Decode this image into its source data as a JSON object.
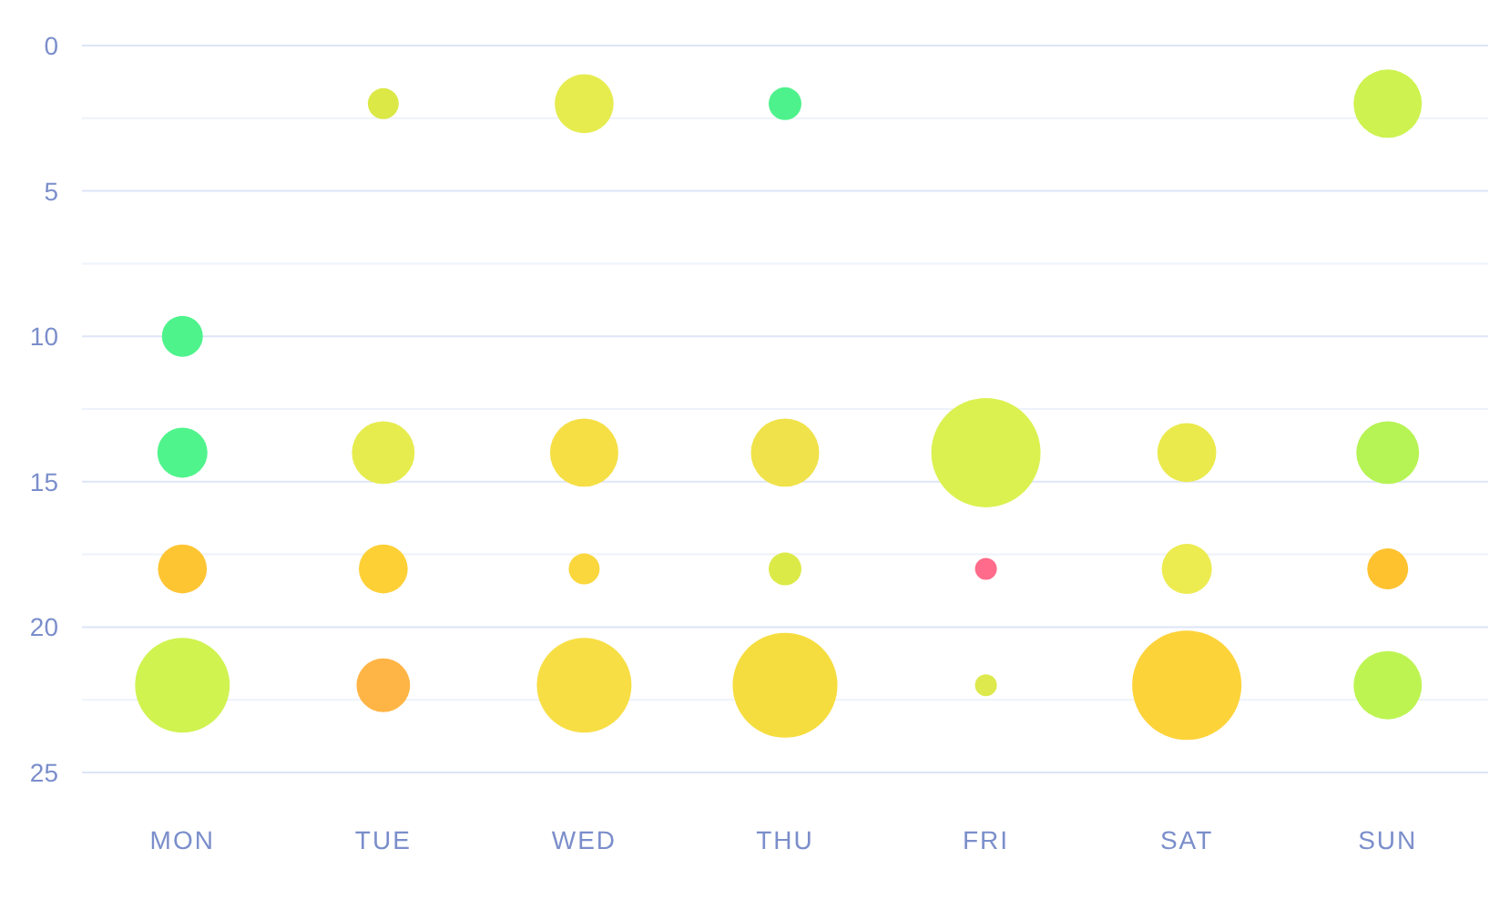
{
  "chart_data": {
    "type": "bubble",
    "categories": [
      "MON",
      "TUE",
      "WED",
      "THU",
      "FRI",
      "SAT",
      "SUN"
    ],
    "series": [
      {
        "values": [
          null,
          2,
          2,
          2,
          null,
          null,
          2
        ],
        "sizes": [
          null,
          0.08,
          0.29,
          0.09,
          null,
          null,
          0.39
        ],
        "colors": [
          null,
          "#dbe845",
          "#e6ec4e",
          "#4ef28c",
          null,
          null,
          "#cef250"
        ]
      },
      {
        "values": [
          10,
          null,
          null,
          null,
          null,
          null,
          null
        ],
        "sizes": [
          0.14,
          null,
          null,
          null,
          null,
          null,
          null
        ],
        "colors": [
          "#4ef38c",
          null,
          null,
          null,
          null,
          null,
          null
        ]
      },
      {
        "values": [
          14,
          14,
          14,
          14,
          14,
          14,
          14
        ],
        "sizes": [
          0.21,
          0.33,
          0.39,
          0.39,
          1,
          0.29,
          0.33
        ],
        "colors": [
          "#50f48c",
          "#e6ec4e",
          "#f5df45",
          "#f0e24a",
          "#dbf150",
          "#eaea4c",
          "#b6f354"
        ]
      },
      {
        "values": [
          18,
          18,
          18,
          18,
          18,
          18,
          18
        ],
        "sizes": [
          0.2,
          0.2,
          0.08,
          0.09,
          0.04,
          0.21,
          0.14
        ],
        "colors": [
          "#fec533",
          "#fdd036",
          "#fad73c",
          "#dcea48",
          "#ff6b8a",
          "#eceb50",
          "#fec22f"
        ]
      },
      {
        "values": [
          22,
          22,
          22,
          22,
          22,
          22,
          22
        ],
        "sizes": [
          0.75,
          0.24,
          0.75,
          0.92,
          0.04,
          1,
          0.39
        ],
        "colors": [
          "#d0f350",
          "#ffb545",
          "#f7de44",
          "#f6dd3f",
          "#dde94d",
          "#fdd33a",
          "#bdf452"
        ]
      }
    ],
    "ylim": [
      25,
      0
    ],
    "yticks": [
      0,
      {
        "value": 2.5,
        "label": null
      },
      5,
      {
        "value": 7.5,
        "label": null
      },
      10,
      {
        "value": 12.5,
        "label": null
      },
      15,
      {
        "value": 17.5,
        "label": null
      },
      20,
      {
        "value": 22.5,
        "label": null
      },
      25
    ],
    "grid": "y"
  }
}
